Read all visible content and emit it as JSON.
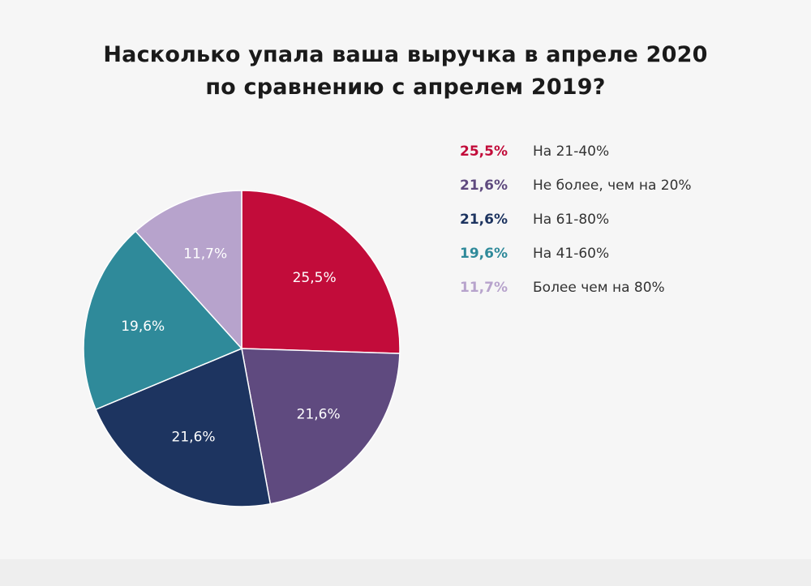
{
  "colors": {
    "background": "#f6f6f6",
    "title": "#1a1a1a"
  },
  "chart_data": {
    "type": "pie",
    "title_lines": [
      "Насколько упала ваша выручка в апреле 2020",
      "по сравнению с апрелем 2019?"
    ],
    "slices": [
      {
        "label": "На 21-40%",
        "value": 25.5,
        "display": "25,5%",
        "color": "#c20c3a"
      },
      {
        "label": "Не более, чем на 20%",
        "value": 21.6,
        "display": "21,6%",
        "color": "#5f4a7f"
      },
      {
        "label": "На 61-80%",
        "value": 21.6,
        "display": "21,6%",
        "color": "#1d3460"
      },
      {
        "label": "На 41-60%",
        "value": 19.6,
        "display": "19,6%",
        "color": "#2f8a9a"
      },
      {
        "label": "Более чем на 80%",
        "value": 11.7,
        "display": "11,7%",
        "color": "#b7a3cc"
      }
    ],
    "start": "12 o'clock",
    "direction": "clockwise",
    "legend_position": "right"
  }
}
